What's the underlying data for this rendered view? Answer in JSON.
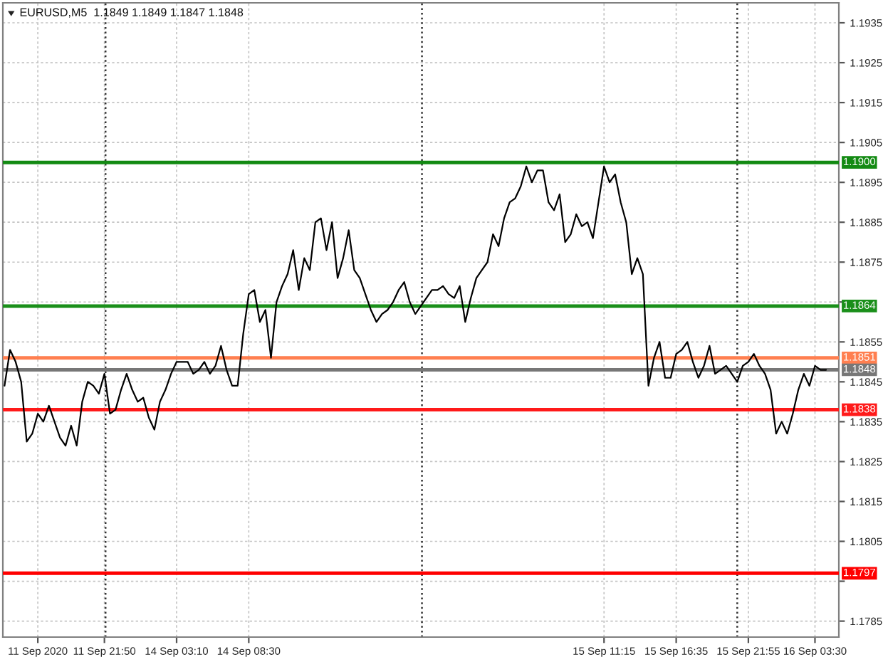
{
  "chart_data": {
    "type": "line",
    "title": "EURUSD,M5  1.1849 1.1849 1.1847 1.1848",
    "categories": [
      null,
      null,
      null,
      null,
      null,
      null,
      "11 Sep 2020",
      null,
      null,
      null,
      null,
      null,
      null,
      null,
      null,
      null,
      null,
      null,
      "11 Sep 21:50",
      null,
      null,
      null,
      null,
      null,
      null,
      null,
      null,
      null,
      null,
      null,
      null,
      "14 Sep 03:10",
      null,
      null,
      null,
      null,
      null,
      null,
      null,
      null,
      null,
      null,
      null,
      null,
      "14 Sep 08:30",
      null,
      null,
      null,
      null,
      null,
      null,
      null,
      null,
      null,
      null,
      null,
      null,
      null,
      null,
      null,
      null,
      null,
      null,
      null,
      null,
      null,
      null,
      null,
      null,
      null,
      null,
      null,
      null,
      null,
      null,
      null,
      null,
      null,
      null,
      null,
      null,
      null,
      null,
      null,
      null,
      null,
      null,
      null,
      null,
      null,
      null,
      null,
      null,
      null,
      null,
      null,
      null,
      null,
      null,
      null,
      null,
      null,
      null,
      null,
      null,
      null,
      null,
      null,
      "15 Sep 11:15",
      null,
      null,
      null,
      null,
      null,
      null,
      null,
      null,
      null,
      null,
      null,
      null,
      "15 Sep 16:35",
      null,
      null,
      null,
      null,
      null,
      null,
      null,
      null,
      null,
      null,
      null,
      null,
      "15 Sep 21:55",
      null,
      null,
      null,
      null,
      null,
      null,
      null,
      null,
      null,
      null,
      null,
      "16 Sep 03:30",
      null,
      null,
      null,
      null
    ],
    "ylim": [
      1.1781,
      1.194
    ],
    "yticks": [
      1.1785,
      {
        "value": 1.1795,
        "label": null
      },
      1.1805,
      1.1815,
      1.1825,
      1.1835,
      1.1845,
      1.1855,
      {
        "value": 1.1865,
        "label": null
      },
      1.1875,
      1.1885,
      1.1895,
      1.1905,
      1.1915,
      1.1925,
      1.1935
    ],
    "grid": true,
    "ref_lines": [
      {
        "axis": "y",
        "value": 1.19,
        "label": "1.1900",
        "color": "#138a13"
      },
      {
        "axis": "y",
        "value": 1.1864,
        "label": "1.1864",
        "color": "#1a8f1a"
      },
      {
        "axis": "y",
        "value": 1.1851,
        "label": "1.1851",
        "color": "#ff7f50"
      },
      {
        "axis": "y",
        "value": 1.1848,
        "label": "1.1848",
        "color": "#777777"
      },
      {
        "axis": "y",
        "value": 1.1838,
        "label": "1.1838",
        "color": "#ff1a1a"
      },
      {
        "axis": "y",
        "value": 1.1797,
        "label": "1.1797",
        "color": "#ff0000"
      }
    ],
    "series": [
      {
        "color": "#000000",
        "values": [
          1.1844,
          1.1853,
          1.185,
          1.1845,
          1.183,
          1.1832,
          1.1837,
          1.1835,
          1.1839,
          1.1835,
          1.1831,
          1.1829,
          1.1834,
          1.1829,
          1.184,
          1.1845,
          1.1844,
          1.1842,
          1.1847,
          1.1837,
          1.1838,
          1.1843,
          1.1847,
          1.1843,
          1.184,
          1.1841,
          1.1836,
          1.1833,
          1.184,
          1.1843,
          1.1847,
          1.185,
          1.185,
          1.185,
          1.1847,
          1.1848,
          1.185,
          1.1847,
          1.1849,
          1.1854,
          1.1848,
          1.1844,
          1.1844,
          1.1857,
          1.1867,
          1.1868,
          1.186,
          1.1863,
          1.1851,
          1.1865,
          1.1869,
          1.1872,
          1.1878,
          1.1868,
          1.1876,
          1.1873,
          1.1885,
          1.1886,
          1.1878,
          1.1885,
          1.1871,
          1.1876,
          1.1883,
          1.1873,
          1.1871,
          1.1867,
          1.1863,
          1.186,
          1.1862,
          1.1863,
          1.1865,
          1.1868,
          1.187,
          1.1865,
          1.1862,
          1.1864,
          1.1866,
          1.1868,
          1.1868,
          1.1869,
          1.1867,
          1.1866,
          1.1869,
          1.186,
          1.1866,
          1.1871,
          1.1873,
          1.1875,
          1.1882,
          1.1879,
          1.1886,
          1.189,
          1.1891,
          1.1894,
          1.1899,
          1.1895,
          1.1898,
          1.1898,
          1.189,
          1.1888,
          1.1892,
          1.188,
          1.1882,
          1.1887,
          1.1884,
          1.1885,
          1.1881,
          1.189,
          1.1899,
          1.1895,
          1.1897,
          1.189,
          1.1885,
          1.1872,
          1.1876,
          1.1872,
          1.1844,
          1.1851,
          1.1855,
          1.1846,
          1.1846,
          1.1852,
          1.1853,
          1.1855,
          1.185,
          1.1846,
          1.1849,
          1.1854,
          1.1847,
          1.1848,
          1.1849,
          1.1847,
          1.1845,
          1.1849,
          1.185,
          1.1852,
          1.1849,
          1.1847,
          1.1843,
          1.1832,
          1.1835,
          1.1832,
          1.1837,
          1.1843,
          1.1847,
          1.1844,
          1.1849,
          1.1848,
          1.1848,
          null,
          null
        ]
      }
    ]
  }
}
